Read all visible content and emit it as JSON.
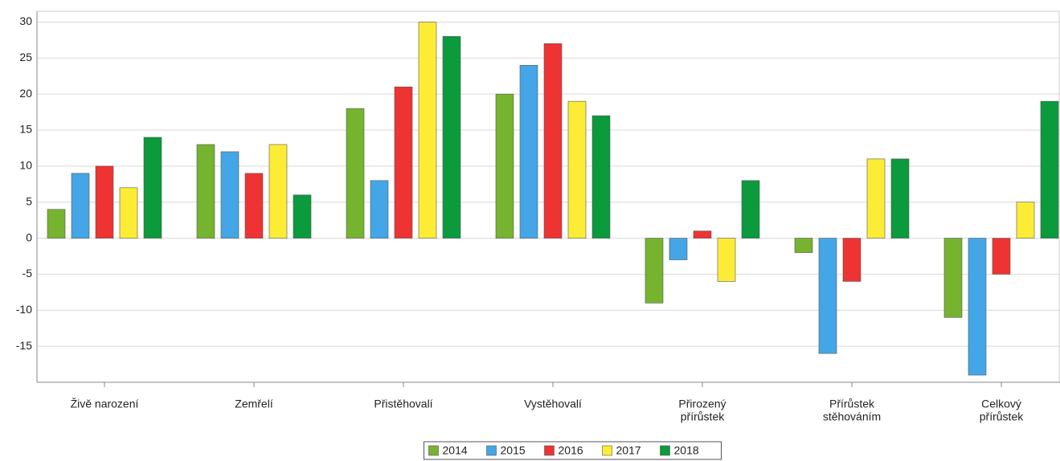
{
  "chart_data": {
    "type": "bar",
    "categories": [
      [
        "Živě narození"
      ],
      [
        "Zemřelí"
      ],
      [
        "Přistěhovalí"
      ],
      [
        "Vystěhovalí"
      ],
      [
        "Přirozený",
        "přírůstek"
      ],
      [
        "Přírůstek",
        "stěhováním"
      ],
      [
        "Celkový",
        "přírůstek"
      ]
    ],
    "series": [
      {
        "name": "2014",
        "color": "#76b32f",
        "values": [
          4,
          13,
          18,
          20,
          -9,
          -2,
          -11
        ]
      },
      {
        "name": "2015",
        "color": "#44a6e6",
        "values": [
          9,
          12,
          8,
          24,
          -3,
          -16,
          -19
        ]
      },
      {
        "name": "2016",
        "color": "#ee3333",
        "values": [
          10,
          9,
          21,
          27,
          1,
          -6,
          -5
        ]
      },
      {
        "name": "2017",
        "color": "#fdec36",
        "values": [
          7,
          13,
          30,
          19,
          -6,
          11,
          5
        ]
      },
      {
        "name": "2018",
        "color": "#0b9a3c",
        "values": [
          14,
          6,
          28,
          17,
          8,
          11,
          19
        ]
      }
    ],
    "ylim": [
      -20,
      31.5
    ],
    "yticks": [
      -15,
      -10,
      -5,
      0,
      5,
      10,
      15,
      20,
      25,
      30
    ],
    "grid": true,
    "legend": "bottom"
  }
}
